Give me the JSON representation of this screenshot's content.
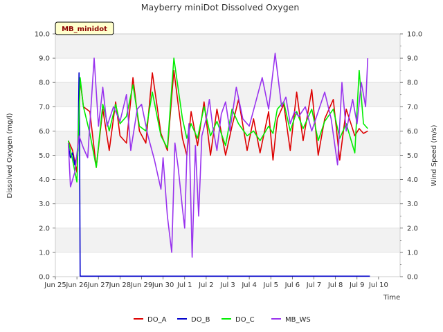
{
  "chart_data": {
    "type": "line",
    "title": "Mayberry miniDot Dissolved Oxygen",
    "site_label": "MB_minidot",
    "xlabel": "Time",
    "ylabel_left": "Dissolved Oxygen (mg/l)",
    "ylabel_right": "Wind Speed (m/s)",
    "xlim": [
      0,
      16
    ],
    "ylim": [
      0,
      10
    ],
    "x_ticks": [
      {
        "x": 0,
        "label": "Jun 25"
      },
      {
        "x": 1,
        "label": "Jun 26"
      },
      {
        "x": 2,
        "label": "Jun 27"
      },
      {
        "x": 3,
        "label": "Jun 28"
      },
      {
        "x": 4,
        "label": "Jun 29"
      },
      {
        "x": 5,
        "label": "Jun 30"
      },
      {
        "x": 6,
        "label": "Jul 1"
      },
      {
        "x": 7,
        "label": "Jul 2"
      },
      {
        "x": 8,
        "label": "Jul 3"
      },
      {
        "x": 9,
        "label": "Jul 4"
      },
      {
        "x": 10,
        "label": "Jul 5"
      },
      {
        "x": 11,
        "label": "Jul 6"
      },
      {
        "x": 12,
        "label": "Jul 7"
      },
      {
        "x": 13,
        "label": "Jul 8"
      },
      {
        "x": 14,
        "label": "Jul 9"
      },
      {
        "x": 15,
        "label": "Jul 10"
      }
    ],
    "y_ticks_left": [
      "0.0",
      "1.0",
      "2.0",
      "3.0",
      "4.0",
      "5.0",
      "6.0",
      "7.0",
      "8.0",
      "9.0",
      "10.0"
    ],
    "y_ticks_right": [
      "0.0",
      "1.0",
      "2.0",
      "3.0",
      "4.0",
      "5.0",
      "6.0",
      "7.0",
      "8.0",
      "9.0",
      "10.0"
    ],
    "series": [
      {
        "name": "DO_A",
        "color": "#dd0000",
        "x": [
          0.6,
          0.8,
          1.0,
          1.15,
          1.3,
          1.6,
          1.9,
          2.2,
          2.5,
          2.8,
          3.0,
          3.3,
          3.6,
          3.9,
          4.2,
          4.5,
          4.9,
          5.2,
          5.5,
          5.9,
          6.1,
          6.3,
          6.6,
          6.9,
          7.2,
          7.5,
          7.9,
          8.2,
          8.5,
          8.9,
          9.2,
          9.5,
          9.9,
          10.1,
          10.3,
          10.6,
          10.9,
          11.2,
          11.5,
          11.9,
          12.2,
          12.5,
          12.9,
          13.2,
          13.5,
          13.9,
          14.1,
          14.3,
          14.5
        ],
        "y": [
          5.6,
          5.2,
          4.3,
          8.1,
          7.0,
          6.8,
          4.5,
          6.9,
          5.2,
          7.2,
          5.8,
          5.5,
          8.2,
          6.0,
          5.5,
          8.4,
          5.9,
          5.2,
          8.5,
          5.7,
          5.0,
          6.8,
          5.4,
          7.2,
          5.0,
          6.9,
          5.0,
          6.2,
          7.3,
          5.2,
          6.5,
          5.1,
          6.8,
          4.8,
          6.5,
          7.1,
          5.2,
          7.6,
          5.6,
          7.7,
          5.0,
          6.5,
          7.3,
          4.8,
          6.9,
          5.8,
          6.1,
          5.9,
          6.0
        ]
      },
      {
        "name": "DO_B",
        "color": "#0000cc",
        "x": [
          0.6,
          0.7,
          0.8,
          0.9,
          1.0,
          1.05,
          1.1,
          1.12,
          1.15,
          1.2,
          2,
          4,
          6,
          8,
          10,
          12,
          14,
          14.6
        ],
        "y": [
          5.4,
          4.9,
          5.1,
          4.6,
          5.0,
          5.2,
          8.4,
          6.0,
          0.02,
          0.02,
          0.02,
          0.02,
          0.02,
          0.02,
          0.02,
          0.02,
          0.02,
          0.02
        ]
      },
      {
        "name": "DO_C",
        "color": "#00ee00",
        "x": [
          0.6,
          0.8,
          1.0,
          1.15,
          1.3,
          1.6,
          1.9,
          2.2,
          2.5,
          2.8,
          3.0,
          3.3,
          3.6,
          3.9,
          4.2,
          4.5,
          4.9,
          5.2,
          5.5,
          5.9,
          6.1,
          6.3,
          6.6,
          6.9,
          7.2,
          7.5,
          7.9,
          8.2,
          8.5,
          8.9,
          9.2,
          9.5,
          9.9,
          10.1,
          10.3,
          10.6,
          10.9,
          11.2,
          11.5,
          11.9,
          12.2,
          12.5,
          12.9,
          13.2,
          13.5,
          13.9,
          14.1,
          14.3,
          14.5
        ],
        "y": [
          5.6,
          4.8,
          3.9,
          8.2,
          7.0,
          5.9,
          4.5,
          7.1,
          6.0,
          7.1,
          6.3,
          6.6,
          7.9,
          6.2,
          6.0,
          7.6,
          5.8,
          5.3,
          9.0,
          6.5,
          5.7,
          6.3,
          5.7,
          7.0,
          5.8,
          6.4,
          5.4,
          6.9,
          6.3,
          5.8,
          6.0,
          5.6,
          6.2,
          5.9,
          6.9,
          7.2,
          6.0,
          6.8,
          6.1,
          6.9,
          5.6,
          6.4,
          6.9,
          5.7,
          6.3,
          5.1,
          8.5,
          6.3,
          6.1
        ]
      },
      {
        "name": "MB_WS",
        "color": "#9933ee",
        "x": [
          0.6,
          0.7,
          0.8,
          0.9,
          1.1,
          1.3,
          1.5,
          1.8,
          2.0,
          2.2,
          2.4,
          2.7,
          3.0,
          3.3,
          3.5,
          3.8,
          4.0,
          4.3,
          4.6,
          4.9,
          5.0,
          5.2,
          5.4,
          5.55,
          5.7,
          5.9,
          6.0,
          6.1,
          6.2,
          6.35,
          6.5,
          6.65,
          6.8,
          7.0,
          7.15,
          7.3,
          7.5,
          7.7,
          7.9,
          8.1,
          8.4,
          8.7,
          9.0,
          9.3,
          9.6,
          9.9,
          10.2,
          10.5,
          10.7,
          10.9,
          11.1,
          11.3,
          11.6,
          11.9,
          12.2,
          12.5,
          12.8,
          13.1,
          13.3,
          13.5,
          13.8,
          14.0,
          14.2,
          14.4,
          14.5
        ],
        "y": [
          5.5,
          3.7,
          4.0,
          4.3,
          5.8,
          5.3,
          4.9,
          9.0,
          6.2,
          7.8,
          6.2,
          7.0,
          6.4,
          7.5,
          5.2,
          6.9,
          7.1,
          5.8,
          4.8,
          3.6,
          4.9,
          2.5,
          1.0,
          5.5,
          4.5,
          2.8,
          2.0,
          5.0,
          6.3,
          0.8,
          5.4,
          2.5,
          5.8,
          6.5,
          7.3,
          6.2,
          5.2,
          6.7,
          7.2,
          6.0,
          7.8,
          6.5,
          6.2,
          7.2,
          8.2,
          6.9,
          9.2,
          7.0,
          7.4,
          6.3,
          6.8,
          6.6,
          7.0,
          6.0,
          6.8,
          7.6,
          6.5,
          4.6,
          8.0,
          6.0,
          7.3,
          6.3,
          8.0,
          7.0,
          9.0
        ]
      }
    ]
  }
}
